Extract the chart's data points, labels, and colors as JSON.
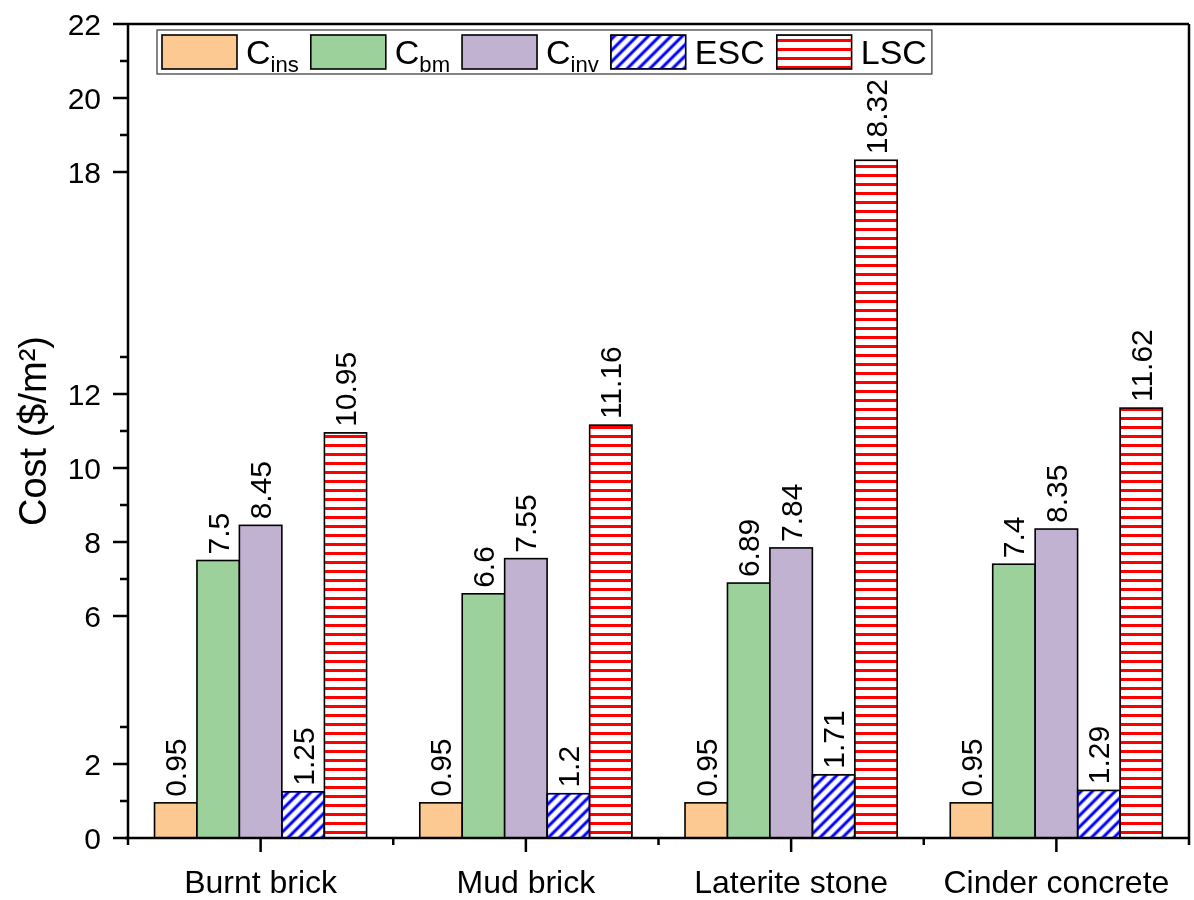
{
  "chart_data": {
    "type": "bar",
    "categories": [
      "Burnt brick",
      "Mud brick",
      "Laterite stone",
      "Cinder concrete"
    ],
    "series": [
      {
        "name": "C$_{ins}$",
        "color": "#fdc993",
        "values": [
          0.95,
          0.95,
          0.95,
          0.95
        ]
      },
      {
        "name": "C$_{bm}$",
        "color": "#9dd19b",
        "values": [
          7.5,
          6.6,
          6.89,
          7.4
        ]
      },
      {
        "name": "C$_{inv}$",
        "color": "#c2b2d2",
        "values": [
          8.45,
          7.55,
          7.84,
          8.35
        ]
      },
      {
        "name": "ESC",
        "color": "#0000ff",
        "values": [
          1.25,
          1.2,
          1.71,
          1.29
        ]
      },
      {
        "name": "LSC",
        "color": "#ff0000",
        "values": [
          10.95,
          11.16,
          18.32,
          11.62
        ]
      }
    ],
    "ylabel": "Cost ($/m²)",
    "ylim": [
      0,
      22
    ],
    "yticks": [
      0,
      {
        "value": 1,
        "label": null
      },
      2,
      {
        "value": 3,
        "label": null
      },
      6,
      {
        "value": 7,
        "label": null
      },
      8,
      {
        "value": 9,
        "label": null
      },
      10,
      {
        "value": 11,
        "label": null
      },
      12,
      {
        "value": 13,
        "label": null
      },
      18,
      {
        "value": 19,
        "label": null
      },
      20,
      {
        "value": 21,
        "label": null
      },
      22
    ],
    "data_labels": true,
    "legend": "top left"
  }
}
